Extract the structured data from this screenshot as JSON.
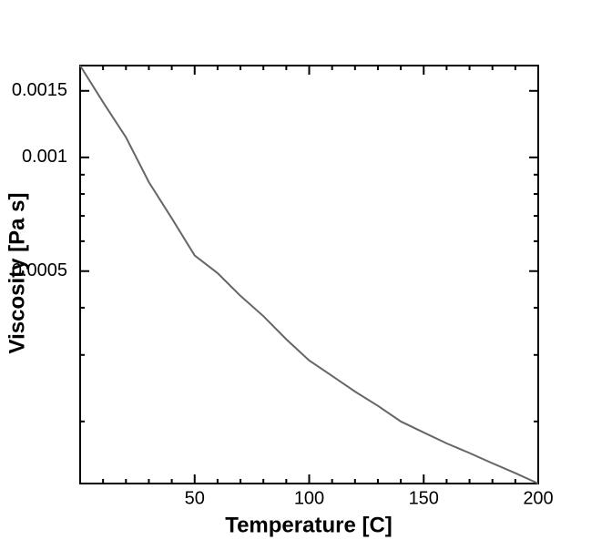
{
  "chart_data": {
    "type": "line",
    "x_label": "Temperature [C]",
    "y_label": "Viscosity [Pa s]",
    "x": [
      0,
      10,
      20,
      30,
      40,
      50,
      60,
      70,
      80,
      90,
      100,
      110,
      120,
      130,
      140,
      150,
      160,
      170,
      180,
      190,
      200
    ],
    "series": [
      {
        "color": "#666666",
        "values": [
          0.00175,
          0.0014,
          0.00113,
          0.00086,
          0.00069,
          0.00055,
          0.000494,
          0.00043,
          0.00038,
          0.00033,
          0.00029,
          0.000264,
          0.00024,
          0.00022,
          0.0002,
          0.000187,
          0.000175,
          0.000165,
          0.000155,
          0.000146,
          0.000137
        ]
      }
    ],
    "xlim": [
      0,
      200
    ],
    "xticks": [
      50,
      100,
      150,
      200
    ],
    "xminor": [
      10,
      20,
      30,
      40,
      60,
      70,
      80,
      90,
      110,
      120,
      130,
      140,
      160,
      170,
      180,
      190
    ],
    "ylim": [
      0.000137,
      0.00175
    ],
    "ylog": true,
    "yticks": [
      0.0005,
      0.001,
      0.0015
    ],
    "yminor": [
      0.0002,
      0.0003,
      0.0004,
      0.0006,
      0.0007,
      0.0008,
      0.0009
    ]
  }
}
